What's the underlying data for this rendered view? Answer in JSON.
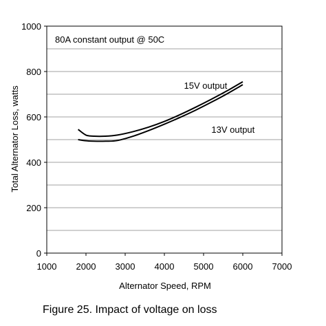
{
  "chart_data": {
    "type": "line",
    "title": "80A constant output @ 50C",
    "xlabel": "Alternator Speed, RPM",
    "ylabel": "Total Alternator Loss, watts",
    "xlim": [
      1000,
      7000
    ],
    "ylim": [
      0,
      1000
    ],
    "xticks": [
      1000,
      2000,
      3000,
      4000,
      5000,
      6000,
      7000
    ],
    "yticks": [
      0,
      200,
      400,
      600,
      800,
      1000
    ],
    "grid": true,
    "series": [
      {
        "name": "15V output",
        "x": [
          1800,
          2000,
          2200,
          2500,
          2800,
          3200,
          3600,
          4000,
          4400,
          4800,
          5200,
          5600,
          6000
        ],
        "y": [
          545,
          520,
          515,
          515,
          520,
          535,
          555,
          580,
          610,
          643,
          678,
          715,
          755
        ]
      },
      {
        "name": "13V output",
        "x": [
          1800,
          2000,
          2200,
          2500,
          2800,
          3200,
          3600,
          4000,
          4400,
          4800,
          5200,
          5600,
          6000
        ],
        "y": [
          500,
          495,
          493,
          493,
          496,
          515,
          540,
          568,
          598,
          630,
          665,
          702,
          742
        ]
      }
    ],
    "annotations": [
      {
        "text": "15V output",
        "x": 4500,
        "y": 725
      },
      {
        "text": "13V output",
        "x": 5200,
        "y": 530
      }
    ]
  },
  "caption": "Figure 25. Impact of voltage on loss"
}
